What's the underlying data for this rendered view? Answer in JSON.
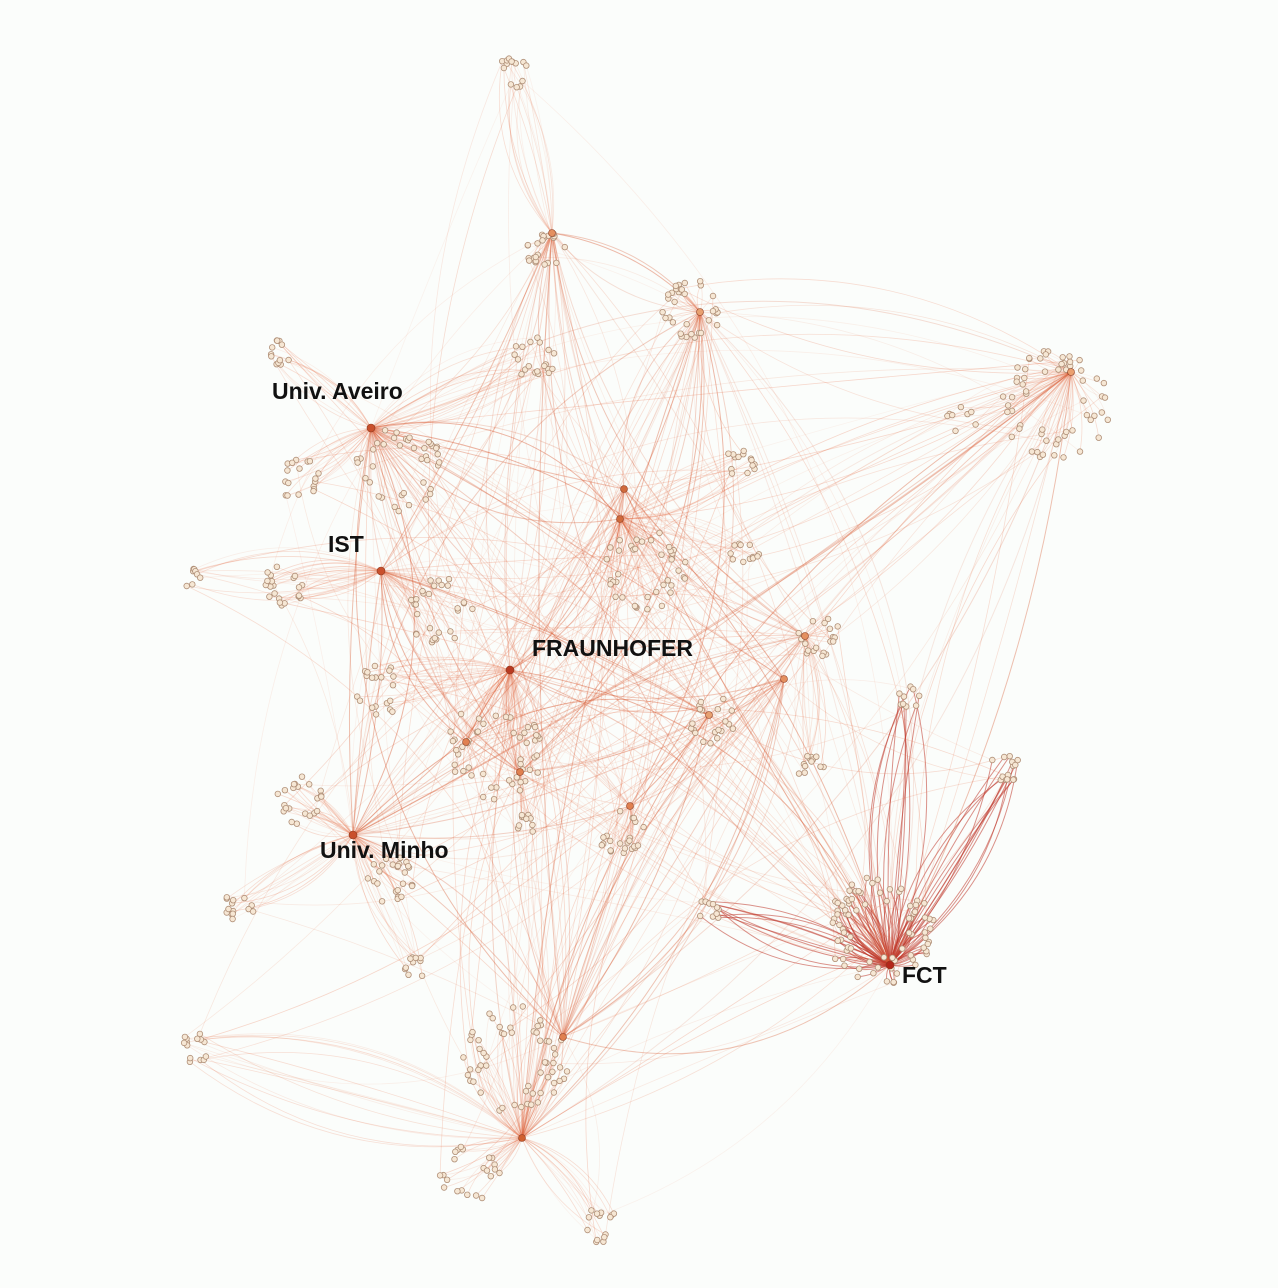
{
  "nodes": [
    {
      "label": "Univ. Aveiro"
    },
    {
      "label": "IST"
    },
    {
      "label": "FRAUNHOFER"
    },
    {
      "label": "Univ. Minho"
    },
    {
      "label": "FCT"
    }
  ]
}
